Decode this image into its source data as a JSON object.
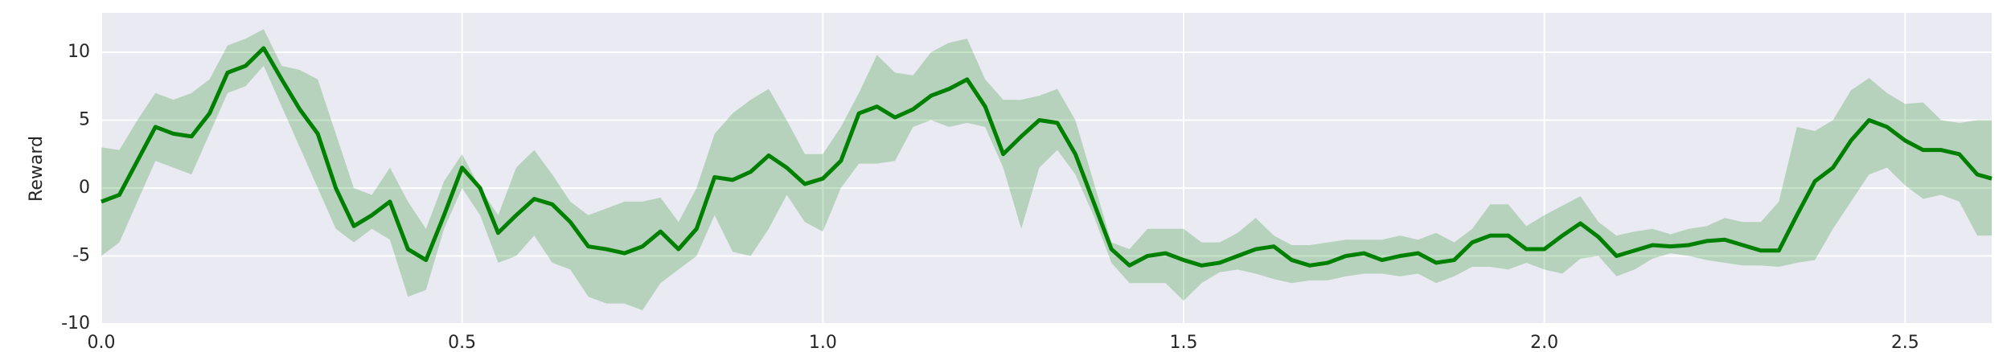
{
  "chart_data": {
    "type": "line",
    "ylabel": "Reward",
    "x": [
      0,
      0.025,
      0.05,
      0.075,
      0.1,
      0.125,
      0.15,
      0.175,
      0.2,
      0.225,
      0.25,
      0.275,
      0.3,
      0.325,
      0.35,
      0.375,
      0.4,
      0.425,
      0.45,
      0.475,
      0.5,
      0.525,
      0.55,
      0.575,
      0.6,
      0.625,
      0.65,
      0.675,
      0.7,
      0.725,
      0.75,
      0.775,
      0.8,
      0.825,
      0.85,
      0.875,
      0.9,
      0.925,
      0.95,
      0.975,
      1,
      1.025,
      1.05,
      1.075,
      1.1,
      1.125,
      1.15,
      1.175,
      1.2,
      1.225,
      1.25,
      1.275,
      1.3,
      1.325,
      1.35,
      1.375,
      1.4,
      1.425,
      1.45,
      1.475,
      1.5,
      1.525,
      1.55,
      1.575,
      1.6,
      1.625,
      1.65,
      1.675,
      1.7,
      1.725,
      1.75,
      1.775,
      1.8,
      1.825,
      1.85,
      1.875,
      1.9,
      1.925,
      1.95,
      1.975,
      2,
      2.025,
      2.05,
      2.075,
      2.1,
      2.125,
      2.15,
      2.175,
      2.2,
      2.225,
      2.25,
      2.275,
      2.3,
      2.325,
      2.35,
      2.375,
      2.4,
      2.425,
      2.45,
      2.475,
      2.5,
      2.525,
      2.55,
      2.575,
      2.6,
      2.62
    ],
    "series": [
      {
        "color": "#008000",
        "values": [
          -1,
          -0.5,
          2,
          4.5,
          4,
          3.8,
          5.5,
          8.5,
          9,
          10.3,
          8,
          5.8,
          4,
          0,
          -2.8,
          -2,
          -1,
          -4.5,
          -5.3,
          -2,
          1.5,
          0,
          -3.3,
          -2,
          -0.8,
          -1.2,
          -2.5,
          -4.3,
          -4.5,
          -4.8,
          -4.3,
          -3.2,
          -4.5,
          -3,
          0.8,
          0.6,
          1.2,
          2.4,
          1.5,
          0.3,
          0.7,
          2,
          5.5,
          6,
          5.2,
          5.8,
          6.8,
          7.3,
          8,
          6,
          2.5,
          3.8,
          5,
          4.8,
          2.5,
          -1,
          -4.5,
          -5.7,
          -5,
          -4.8,
          -5.3,
          -5.7,
          -5.5,
          -5,
          -4.5,
          -4.3,
          -5.3,
          -5.7,
          -5.5,
          -5,
          -4.8,
          -5.3,
          -5,
          -4.8,
          -5.5,
          -5.3,
          -4,
          -3.5,
          -3.5,
          -4.5,
          -4.5,
          -3.5,
          -2.6,
          -3.6,
          -5,
          -4.6,
          -4.2,
          -4.3,
          -4.2,
          -3.9,
          -3.8,
          -4.2,
          -4.6,
          -4.6,
          -2,
          0.5,
          1.5,
          3.5,
          5,
          4.5,
          3.5,
          2.8,
          2.8,
          2.5,
          1,
          0.7
        ],
        "upper": [
          3,
          2.8,
          5,
          7,
          6.5,
          7,
          8,
          10.5,
          11,
          11.7,
          9,
          8.7,
          8,
          4,
          0,
          -0.5,
          1.5,
          -1,
          -3,
          0.5,
          2.5,
          0,
          -2,
          1.5,
          2.8,
          1,
          -1,
          -2,
          -1.5,
          -1,
          -1,
          -0.7,
          -2.5,
          0,
          4,
          5.5,
          6.5,
          7.3,
          5,
          2.5,
          2.5,
          4.5,
          7,
          9.8,
          8.5,
          8.3,
          10,
          10.7,
          11,
          8,
          6.5,
          6.5,
          6.8,
          7.3,
          5,
          0.5,
          -4,
          -4.5,
          -3,
          -3,
          -3,
          -4,
          -4,
          -3.3,
          -2.2,
          -3.5,
          -4.2,
          -4.2,
          -4,
          -3.8,
          -3.8,
          -3.8,
          -3.5,
          -3.8,
          -3.3,
          -4,
          -3,
          -1.2,
          -1.2,
          -2.8,
          -2,
          -1.3,
          -0.6,
          -2.5,
          -3.5,
          -3.2,
          -3,
          -3.4,
          -3,
          -2.8,
          -2.2,
          -2.5,
          -2.5,
          -1,
          4.5,
          4.2,
          5,
          7.2,
          8.1,
          7,
          6.2,
          6.3,
          5,
          4.8,
          5,
          5
        ],
        "lower": [
          -5,
          -4,
          -1,
          2,
          1.5,
          1,
          4,
          7,
          7.5,
          9,
          6,
          3,
          0,
          -3,
          -4,
          -3,
          -3.8,
          -8,
          -7.5,
          -3,
          0,
          -2,
          -5.5,
          -5,
          -3.5,
          -5.5,
          -6,
          -8,
          -8.5,
          -8.5,
          -9,
          -7,
          -6,
          -5,
          -2,
          -4.7,
          -5,
          -3,
          -0.5,
          -2.5,
          -3.2,
          0,
          1.8,
          1.8,
          2,
          4.5,
          5,
          4.5,
          4.8,
          4.5,
          1.5,
          -3,
          1.5,
          2.8,
          1,
          -2,
          -5.5,
          -7,
          -7,
          -7,
          -8.3,
          -7,
          -6.2,
          -6,
          -6.3,
          -6.7,
          -7,
          -6.8,
          -6.8,
          -6.5,
          -6.3,
          -6.3,
          -6.5,
          -6.3,
          -7,
          -6.5,
          -5.8,
          -5.8,
          -6,
          -5.5,
          -6,
          -6.3,
          -5.2,
          -5,
          -6.5,
          -6,
          -5.2,
          -4.8,
          -5,
          -5.3,
          -5.5,
          -5.7,
          -5.7,
          -5.8,
          -5.5,
          -5.3,
          -3,
          -1,
          1,
          1.5,
          0.2,
          -0.8,
          -0.5,
          -1,
          -3.5,
          -3.5
        ]
      }
    ],
    "xlim": [
      0,
      2.62
    ],
    "ylim": [
      -10,
      12.9
    ],
    "xticks": [
      {
        "value": 0,
        "label": "0.0"
      },
      0.5,
      {
        "value": 1,
        "label": "1.0"
      },
      1.5,
      {
        "value": 2,
        "label": "2.0"
      },
      2.5
    ],
    "yticks": [
      -10,
      -5,
      0,
      5,
      10
    ],
    "grid": true
  }
}
